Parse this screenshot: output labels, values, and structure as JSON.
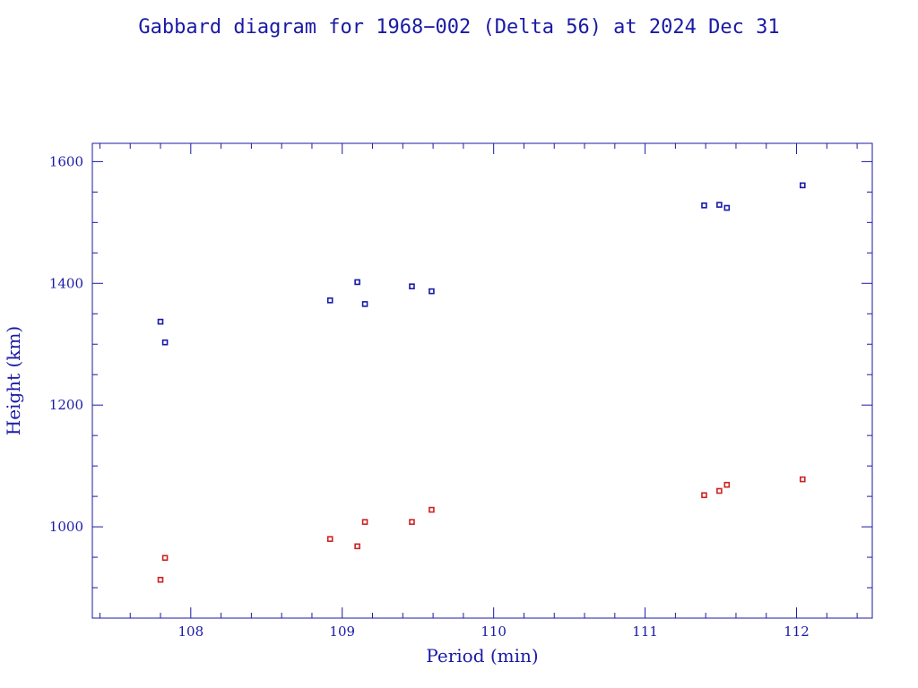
{
  "chart_data": {
    "type": "scatter",
    "title": "Gabbard diagram for 1968−002 (Delta 56) at 2024 Dec 31",
    "xlabel": "Period (min)",
    "ylabel": "Height (km)",
    "xlim": [
      107.35,
      112.5
    ],
    "ylim": [
      850,
      1630
    ],
    "x_ticks": [
      108,
      109,
      110,
      111,
      112
    ],
    "x_tick_labels": [
      "108",
      "109",
      "110",
      "111",
      "112"
    ],
    "x_minor_step": 0.2,
    "y_ticks": [
      1000,
      1200,
      1400,
      1600
    ],
    "y_tick_labels": [
      "1000",
      "1200",
      "1400",
      "1600"
    ],
    "y_minor_step": 50,
    "grid": false,
    "series": [
      {
        "role": "apogee",
        "color": "#1a1aa6",
        "points": [
          [
            107.8,
            1337
          ],
          [
            107.83,
            1303
          ],
          [
            108.92,
            1372
          ],
          [
            109.1,
            1402
          ],
          [
            109.15,
            1366
          ],
          [
            109.46,
            1395
          ],
          [
            109.59,
            1387
          ],
          [
            111.39,
            1528
          ],
          [
            111.49,
            1529
          ],
          [
            111.54,
            1524
          ],
          [
            112.04,
            1561
          ]
        ]
      },
      {
        "role": "perigee",
        "color": "#cc2222",
        "points": [
          [
            107.8,
            913
          ],
          [
            107.83,
            949
          ],
          [
            108.92,
            980
          ],
          [
            109.1,
            968
          ],
          [
            109.15,
            1008
          ],
          [
            109.46,
            1008
          ],
          [
            109.59,
            1028
          ],
          [
            111.39,
            1052
          ],
          [
            111.49,
            1059
          ],
          [
            111.54,
            1069
          ],
          [
            112.04,
            1078
          ]
        ]
      }
    ]
  }
}
